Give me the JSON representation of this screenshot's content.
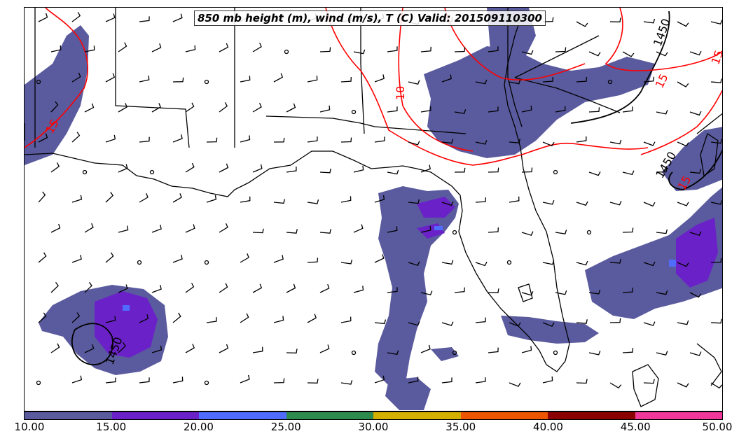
{
  "title": "850 mb height (m), wind (m/s), T (C) Valid: 201509110300",
  "colorbar": {
    "ticks": [
      "10.00",
      "15.00",
      "20.00",
      "25.00",
      "30.00",
      "35.00",
      "40.00",
      "45.00",
      "50.00"
    ],
    "colors": [
      "#5a5a9e",
      "#6a22c8",
      "#4f6cff",
      "#2e8b4e",
      "#d4b000",
      "#ee5500",
      "#8b0000",
      "#f0389a"
    ]
  },
  "contour_labels": {
    "height": [
      "1450",
      "1450",
      "1450"
    ],
    "temperature": [
      "15",
      "15",
      "15",
      "15",
      "10"
    ]
  },
  "colors": {
    "height_contour": "#000000",
    "temperature_contour": "#ff0000",
    "coastline": "#000000",
    "wind_shading_base": "#5a5a9e"
  }
}
